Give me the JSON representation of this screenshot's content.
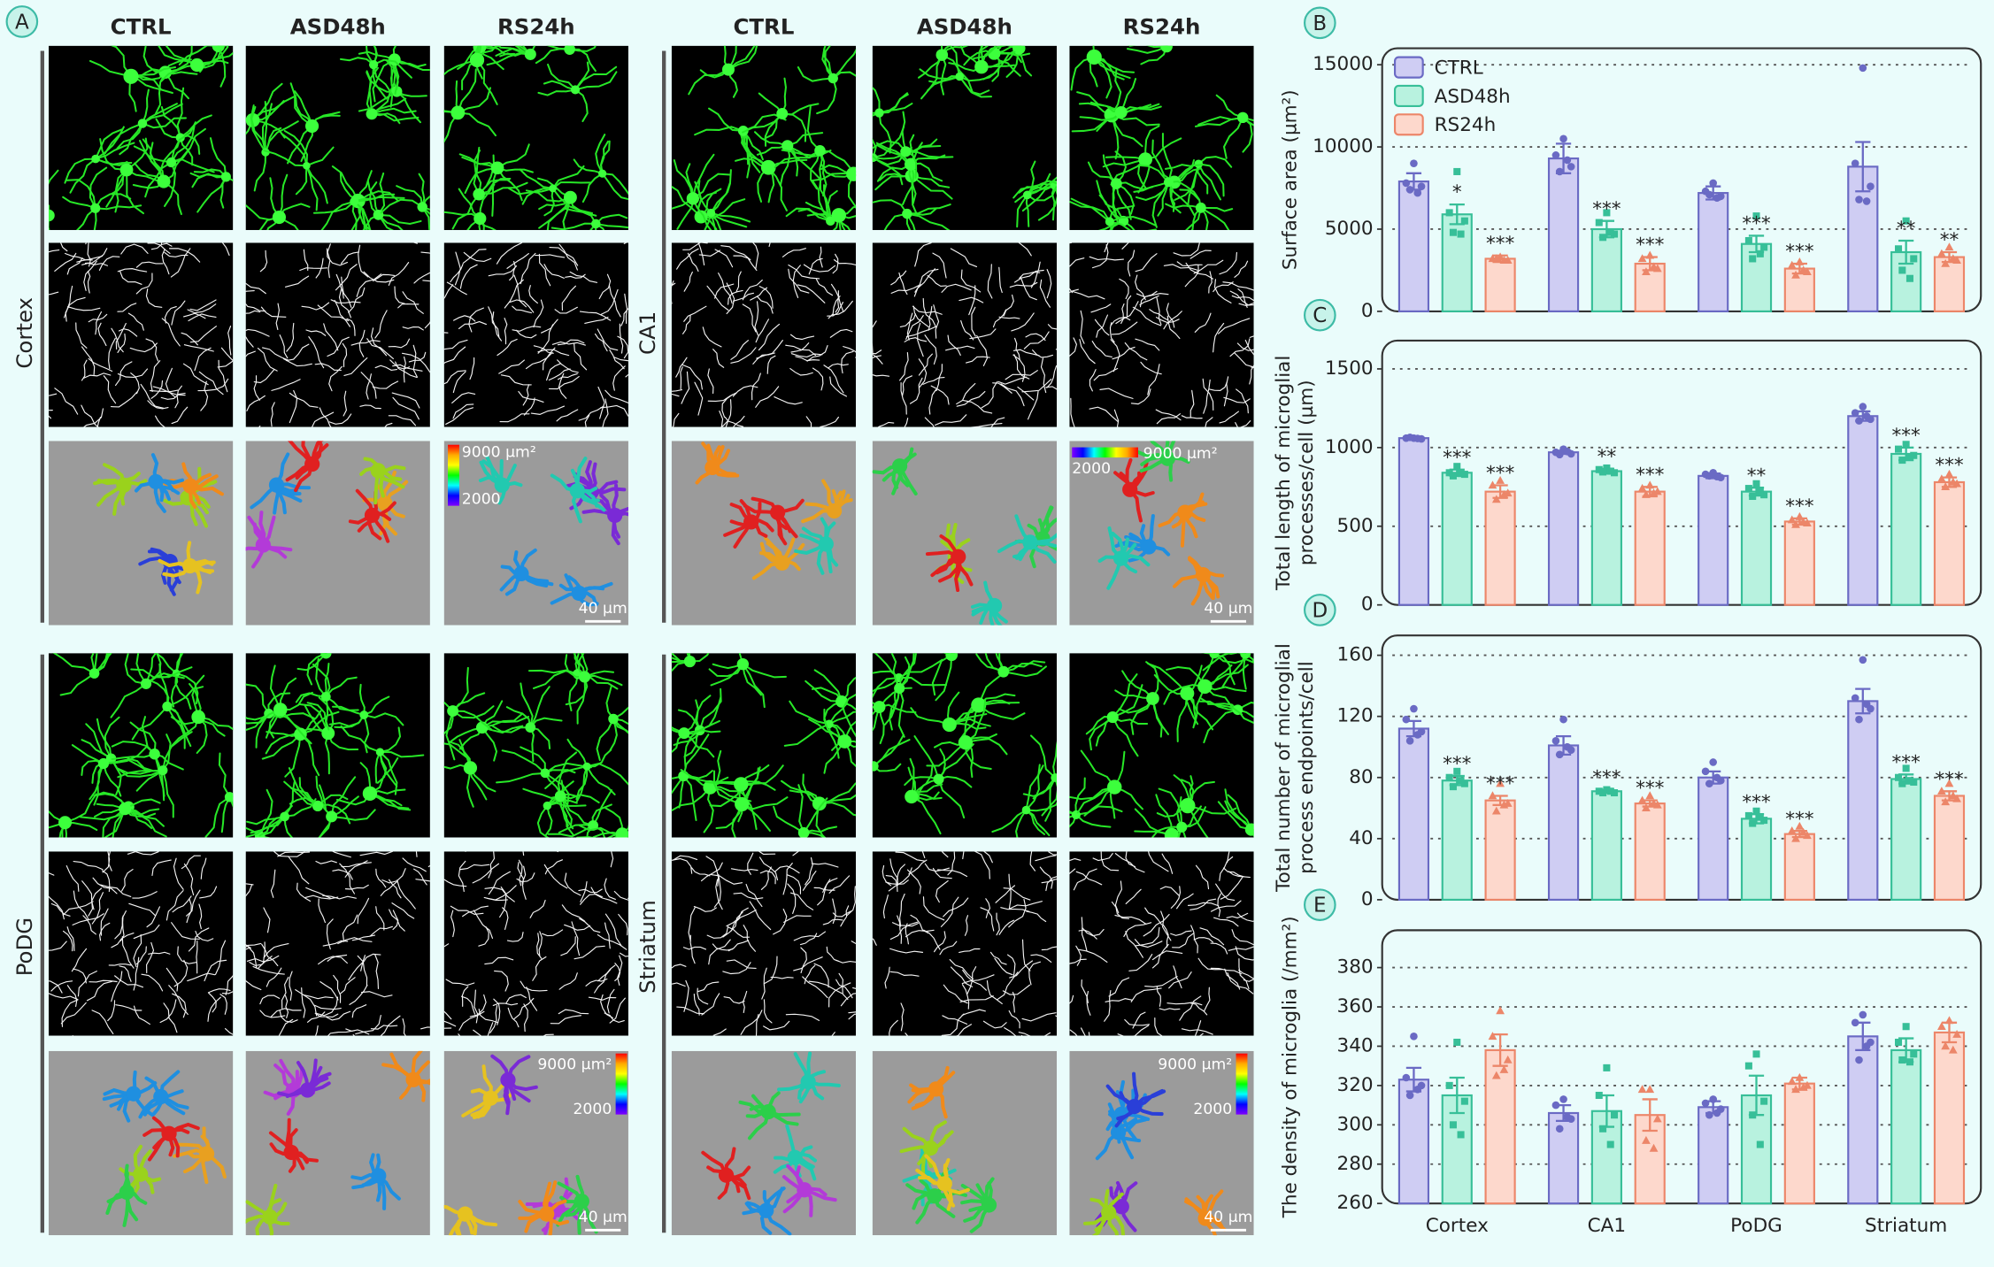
{
  "panel_a": {
    "label": "A",
    "columns": [
      "CTRL",
      "ASD48h",
      "RS24h"
    ],
    "regions": [
      "Cortex",
      "CA1",
      "PoDG",
      "Striatum"
    ],
    "scale_bar": "40 µm",
    "colorbar_max": "9000 µm²",
    "colorbar_min": "2000"
  },
  "chart_data": [
    {
      "type": "bar",
      "panel": "B",
      "ylabel": [
        "Surface area (µm²)"
      ],
      "ylim": [
        0,
        16000
      ],
      "yticks": [
        0,
        5000,
        10000,
        15000
      ],
      "grid": true,
      "legend": "top-left",
      "series": [
        {
          "name": "CTRL",
          "color": "#6a6ac4",
          "fill": "#cfcdf3",
          "marker": "circle",
          "values": [
            7900,
            9300,
            7200,
            8800
          ],
          "errors": [
            500,
            900,
            400,
            1500
          ],
          "significance": [
            null,
            null,
            null,
            null
          ],
          "points": [
            [
              9000,
              7800,
              7600,
              7400,
              7200
            ],
            [
              10500,
              9500,
              8800,
              8500,
              9200
            ],
            [
              7800,
              7300,
              7000,
              7100,
              6900
            ],
            [
              14800,
              9000,
              7600,
              6800,
              6700
            ]
          ]
        },
        {
          "name": "ASD48h",
          "color": "#37bf98",
          "fill": "#b8f2df",
          "marker": "square",
          "values": [
            5900,
            5000,
            4100,
            3600
          ],
          "errors": [
            600,
            500,
            500,
            700
          ],
          "significance": [
            "*",
            "***",
            "***",
            "**"
          ],
          "points": [
            [
              8500,
              6000,
              5500,
              4800,
              4700
            ],
            [
              6000,
              5400,
              4700,
              4500,
              4800
            ],
            [
              5800,
              4300,
              3900,
              3200,
              3500
            ],
            [
              5500,
              3800,
              3200,
              2500,
              2000
            ]
          ]
        },
        {
          "name": "RS24h",
          "color": "#ec8669",
          "fill": "#fdd8cc",
          "marker": "triangle",
          "values": [
            3200,
            2900,
            2600,
            3300
          ],
          "errors": [
            200,
            400,
            300,
            300
          ],
          "significance": [
            "***",
            "***",
            "***",
            "**"
          ],
          "points": [
            [
              3300,
              3200,
              3100,
              3200,
              3100
            ],
            [
              3400,
              3200,
              2600,
              2400,
              2700
            ],
            [
              3000,
              2800,
              2400,
              2200,
              2500
            ],
            [
              3900,
              3500,
              3100,
              2900,
              3200
            ]
          ]
        }
      ]
    },
    {
      "type": "bar",
      "panel": "C",
      "ylabel": [
        "Total length of microglial",
        "processes/cell (µm)"
      ],
      "ylim": [
        0,
        1680
      ],
      "yticks": [
        0,
        500,
        1000,
        1500
      ],
      "grid": true,
      "series": [
        {
          "color": "#6a6ac4",
          "fill": "#cfcdf3",
          "marker": "circle",
          "values": [
            1060,
            970,
            820,
            1200
          ],
          "errors": [
            5,
            10,
            15,
            30
          ],
          "significance": [
            null,
            null,
            null,
            null
          ],
          "points": [
            [
              1060,
              1060,
              1055,
              1065,
              1058
            ],
            [
              990,
              970,
              960,
              955,
              975
            ],
            [
              840,
              830,
              810,
              820,
              815
            ],
            [
              1260,
              1220,
              1180,
              1170,
              1200
            ]
          ]
        },
        {
          "color": "#37bf98",
          "fill": "#b8f2df",
          "marker": "square",
          "values": [
            840,
            850,
            720,
            960
          ],
          "errors": [
            20,
            15,
            25,
            40
          ],
          "significance": [
            "***",
            "**",
            "**",
            "***"
          ],
          "points": [
            [
              880,
              840,
              830,
              820,
              835
            ],
            [
              870,
              860,
              840,
              845,
              850
            ],
            [
              770,
              740,
              700,
              690,
              720
            ],
            [
              1020,
              990,
              950,
              920,
              940
            ]
          ]
        },
        {
          "color": "#ec8669",
          "fill": "#fdd8cc",
          "marker": "triangle",
          "values": [
            720,
            720,
            530,
            780
          ],
          "errors": [
            40,
            30,
            20,
            30
          ],
          "significance": [
            "***",
            "***",
            "***",
            "***"
          ],
          "points": [
            [
              790,
              760,
              710,
              670,
              700
            ],
            [
              760,
              740,
              720,
              700,
              710
            ],
            [
              560,
              540,
              520,
              510,
              525
            ],
            [
              830,
              800,
              770,
              750,
              780
            ]
          ]
        }
      ]
    },
    {
      "type": "bar",
      "panel": "D",
      "ylabel": [
        "Total number of microglial",
        "process endpoints/cell"
      ],
      "ylim": [
        0,
        173
      ],
      "yticks": [
        0,
        40,
        80,
        120,
        160
      ],
      "grid": true,
      "series": [
        {
          "color": "#6a6ac4",
          "fill": "#cfcdf3",
          "marker": "circle",
          "values": [
            112,
            101,
            80,
            130
          ],
          "errors": [
            5,
            6,
            4,
            8
          ],
          "significance": [
            null,
            null,
            null,
            null
          ],
          "points": [
            [
              125,
              118,
              110,
              104,
              108
            ],
            [
              118,
              104,
              98,
              95,
              100
            ],
            [
              90,
              84,
              78,
              76,
              80
            ],
            [
              157,
              132,
              125,
              118,
              128
            ]
          ]
        },
        {
          "color": "#37bf98",
          "fill": "#b8f2df",
          "marker": "square",
          "values": [
            78,
            71,
            53,
            79
          ],
          "errors": [
            3,
            1,
            3,
            3
          ],
          "significance": [
            "***",
            "***",
            "***",
            "***"
          ],
          "points": [
            [
              84,
              80,
              76,
              74,
              78
            ],
            [
              72,
              71,
              70,
              70,
              71
            ],
            [
              58,
              55,
              52,
              50,
              54
            ],
            [
              86,
              80,
              77,
              76,
              78
            ]
          ]
        },
        {
          "color": "#ec8669",
          "fill": "#fdd8cc",
          "marker": "triangle",
          "values": [
            65,
            63,
            43,
            68
          ],
          "errors": [
            3,
            2,
            2,
            3
          ],
          "significance": [
            "***",
            "***",
            "***",
            "***"
          ],
          "points": [
            [
              76,
              68,
              63,
              58,
              62
            ],
            [
              68,
              65,
              62,
              60,
              63
            ],
            [
              48,
              45,
              42,
              40,
              44
            ],
            [
              76,
              71,
              66,
              64,
              68
            ]
          ]
        }
      ]
    },
    {
      "type": "bar",
      "panel": "E",
      "ylabel": [
        "The density of microglia (/mm²)"
      ],
      "ylim": [
        260,
        399
      ],
      "yticks": [
        260,
        280,
        300,
        320,
        340,
        360,
        380
      ],
      "grid": true,
      "categories": [
        "Cortex",
        "CA1",
        "PoDG",
        "Striatum"
      ],
      "series": [
        {
          "color": "#6a6ac4",
          "fill": "#cfcdf3",
          "marker": "circle",
          "values": [
            323,
            306,
            309,
            345
          ],
          "errors": [
            6,
            4,
            3,
            7
          ],
          "significance": [
            null,
            null,
            null,
            null
          ],
          "points": [
            [
              345,
              324,
              320,
              315,
              318
            ],
            [
              313,
              310,
              303,
              298,
              304
            ],
            [
              313,
              311,
              308,
              305,
              306
            ],
            [
              356,
              352,
              342,
              333,
              340
            ]
          ]
        },
        {
          "color": "#37bf98",
          "fill": "#b8f2df",
          "marker": "square",
          "values": [
            315,
            307,
            315,
            338
          ],
          "errors": [
            9,
            8,
            10,
            6
          ],
          "significance": [
            null,
            null,
            null,
            null
          ],
          "points": [
            [
              342,
              320,
              312,
              300,
              295
            ],
            [
              329,
              315,
              305,
              298,
              290
            ],
            [
              336,
              330,
              312,
              305,
              290
            ],
            [
              350,
              342,
              336,
              333,
              332
            ]
          ]
        },
        {
          "color": "#ec8669",
          "fill": "#fdd8cc",
          "marker": "triangle",
          "values": [
            338,
            305,
            321,
            347
          ],
          "errors": [
            8,
            8,
            3,
            5
          ],
          "significance": [
            null,
            null,
            null,
            null
          ],
          "points": [
            [
              358,
              345,
              333,
              325,
              328
            ],
            [
              318,
              318,
              303,
              292,
              288
            ],
            [
              324,
              322,
              320,
              318,
              319
            ],
            [
              353,
              350,
              346,
              340,
              338
            ]
          ]
        }
      ]
    }
  ]
}
